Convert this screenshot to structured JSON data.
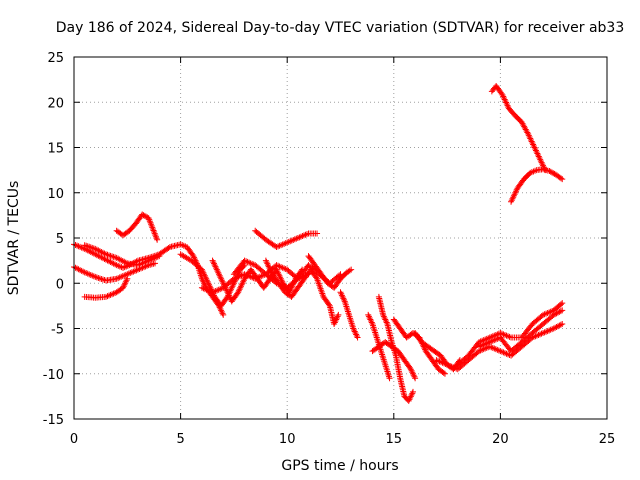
{
  "chart_data": {
    "type": "scatter",
    "title": "Day 186 of 2024, Sidereal Day-to-day VTEC variation (SDTVAR) for receiver ab33",
    "xlabel": "GPS time / hours",
    "ylabel": "SDTVAR / TECUs",
    "xlim": [
      0,
      25
    ],
    "ylim": [
      -15,
      25
    ],
    "x_ticks": [
      0,
      5,
      10,
      15,
      20,
      25
    ],
    "y_ticks": [
      -15,
      -10,
      -5,
      0,
      5,
      10,
      15,
      20,
      25
    ],
    "grid": true,
    "marker": "plus",
    "color": "#ff0000",
    "tracks": [
      {
        "name": "track-1",
        "points": [
          [
            0.0,
            4.3
          ],
          [
            0.5,
            3.8
          ],
          [
            1.0,
            3.2
          ],
          [
            1.5,
            2.6
          ],
          [
            2.0,
            2.0
          ],
          [
            2.3,
            1.7
          ],
          [
            2.6,
            2.0
          ],
          [
            3.0,
            2.5
          ],
          [
            3.5,
            2.8
          ],
          [
            4.0,
            3.2
          ],
          [
            4.5,
            4.0
          ],
          [
            5.0,
            4.3
          ],
          [
            5.3,
            4.0
          ],
          [
            5.6,
            3.0
          ],
          [
            5.8,
            2.0
          ],
          [
            6.0,
            0.5
          ],
          [
            6.2,
            -0.5
          ],
          [
            6.5,
            -1.5
          ],
          [
            6.8,
            -2.5
          ],
          [
            7.0,
            -3.5
          ]
        ]
      },
      {
        "name": "track-2",
        "points": [
          [
            0.0,
            1.8
          ],
          [
            0.5,
            1.2
          ],
          [
            1.0,
            0.7
          ],
          [
            1.5,
            0.3
          ],
          [
            2.0,
            0.5
          ],
          [
            2.5,
            1.0
          ],
          [
            3.0,
            1.5
          ],
          [
            3.5,
            2.0
          ],
          [
            3.8,
            2.2
          ]
        ]
      },
      {
        "name": "track-3",
        "points": [
          [
            0.5,
            -1.5
          ],
          [
            1.0,
            -1.6
          ],
          [
            1.5,
            -1.5
          ],
          [
            2.0,
            -1.0
          ],
          [
            2.3,
            -0.5
          ],
          [
            2.5,
            0.5
          ]
        ]
      },
      {
        "name": "track-4",
        "points": [
          [
            2.0,
            5.8
          ],
          [
            2.3,
            5.3
          ],
          [
            2.6,
            5.8
          ],
          [
            2.9,
            6.6
          ],
          [
            3.2,
            7.6
          ],
          [
            3.5,
            7.2
          ],
          [
            3.7,
            6.0
          ],
          [
            3.9,
            4.8
          ]
        ]
      },
      {
        "name": "track-5",
        "points": [
          [
            0.5,
            4.2
          ],
          [
            1.0,
            3.8
          ],
          [
            1.5,
            3.2
          ],
          [
            2.0,
            2.8
          ],
          [
            2.5,
            2.2
          ],
          [
            3.0,
            2.0
          ],
          [
            3.5,
            2.5
          ],
          [
            4.0,
            3.0
          ]
        ]
      },
      {
        "name": "track-6",
        "points": [
          [
            5.0,
            3.2
          ],
          [
            5.5,
            2.5
          ],
          [
            6.0,
            1.5
          ],
          [
            6.3,
            0.0
          ],
          [
            6.6,
            -1.5
          ],
          [
            6.9,
            -2.5
          ],
          [
            7.2,
            -1.5
          ],
          [
            7.5,
            0.0
          ],
          [
            7.8,
            1.5
          ],
          [
            8.0,
            2.0
          ]
        ]
      },
      {
        "name": "track-7",
        "points": [
          [
            6.0,
            -0.5
          ],
          [
            6.5,
            -1.0
          ],
          [
            7.0,
            -0.5
          ],
          [
            7.5,
            0.5
          ],
          [
            8.0,
            1.0
          ],
          [
            8.5,
            0.5
          ],
          [
            9.0,
            1.0
          ],
          [
            9.5,
            2.0
          ],
          [
            10.0,
            1.5
          ],
          [
            10.5,
            0.5
          ],
          [
            11.0,
            1.0
          ]
        ]
      },
      {
        "name": "track-8",
        "points": [
          [
            6.5,
            2.5
          ],
          [
            6.8,
            1.0
          ],
          [
            7.1,
            -0.5
          ],
          [
            7.4,
            -2.0
          ],
          [
            7.7,
            -1.0
          ],
          [
            8.0,
            0.5
          ],
          [
            8.3,
            1.5
          ],
          [
            8.6,
            0.5
          ],
          [
            8.9,
            -0.5
          ],
          [
            9.2,
            0.5
          ],
          [
            9.5,
            1.5
          ],
          [
            9.8,
            0.0
          ],
          [
            10.1,
            -1.0
          ],
          [
            10.4,
            0.5
          ],
          [
            10.7,
            1.5
          ]
        ]
      },
      {
        "name": "track-9",
        "points": [
          [
            7.5,
            1.0
          ],
          [
            8.0,
            2.5
          ],
          [
            8.5,
            2.0
          ],
          [
            9.0,
            1.0
          ],
          [
            9.5,
            0.0
          ],
          [
            10.0,
            -0.5
          ],
          [
            10.5,
            0.5
          ],
          [
            11.0,
            2.0
          ],
          [
            11.5,
            1.0
          ],
          [
            12.0,
            0.0
          ],
          [
            12.5,
            1.0
          ]
        ]
      },
      {
        "name": "track-10",
        "points": [
          [
            8.5,
            5.8
          ],
          [
            9.0,
            4.8
          ],
          [
            9.5,
            4.0
          ],
          [
            10.0,
            4.5
          ],
          [
            10.5,
            5.0
          ],
          [
            11.0,
            5.5
          ],
          [
            11.4,
            5.5
          ]
        ]
      },
      {
        "name": "track-11",
        "points": [
          [
            9.0,
            2.5
          ],
          [
            9.3,
            1.0
          ],
          [
            9.6,
            0.0
          ],
          [
            9.9,
            -1.0
          ],
          [
            10.2,
            -1.5
          ],
          [
            10.5,
            -0.5
          ],
          [
            10.8,
            0.5
          ],
          [
            11.1,
            1.5
          ],
          [
            11.4,
            0.5
          ],
          [
            11.7,
            -1.5
          ],
          [
            12.0,
            -2.5
          ],
          [
            12.2,
            -4.5
          ],
          [
            12.4,
            -3.5
          ]
        ]
      },
      {
        "name": "track-12",
        "points": [
          [
            11.0,
            3.0
          ],
          [
            11.3,
            2.0
          ],
          [
            11.6,
            1.0
          ],
          [
            11.9,
            0.0
          ],
          [
            12.2,
            -0.5
          ],
          [
            12.5,
            0.5
          ],
          [
            12.8,
            1.2
          ],
          [
            13.0,
            1.5
          ]
        ]
      },
      {
        "name": "track-13",
        "points": [
          [
            12.5,
            -1.0
          ],
          [
            12.7,
            -2.0
          ],
          [
            12.9,
            -3.5
          ],
          [
            13.1,
            -5.0
          ],
          [
            13.3,
            -6.0
          ]
        ]
      },
      {
        "name": "track-14",
        "points": [
          [
            13.8,
            -3.5
          ],
          [
            14.0,
            -4.5
          ],
          [
            14.2,
            -6.0
          ],
          [
            14.4,
            -7.5
          ],
          [
            14.6,
            -9.0
          ],
          [
            14.8,
            -10.5
          ]
        ]
      },
      {
        "name": "track-15",
        "points": [
          [
            14.3,
            -1.5
          ],
          [
            14.5,
            -3.5
          ],
          [
            14.7,
            -4.5
          ],
          [
            14.9,
            -6.5
          ],
          [
            15.1,
            -8.0
          ],
          [
            15.3,
            -10.5
          ],
          [
            15.5,
            -12.5
          ],
          [
            15.7,
            -13.0
          ],
          [
            15.9,
            -12.0
          ]
        ]
      },
      {
        "name": "track-16",
        "points": [
          [
            14.0,
            -7.5
          ],
          [
            14.3,
            -7.0
          ],
          [
            14.6,
            -6.5
          ],
          [
            14.9,
            -7.0
          ],
          [
            15.2,
            -7.5
          ],
          [
            15.5,
            -8.5
          ],
          [
            15.8,
            -9.5
          ],
          [
            16.0,
            -10.5
          ]
        ]
      },
      {
        "name": "track-17",
        "points": [
          [
            15.0,
            -4.0
          ],
          [
            15.3,
            -5.0
          ],
          [
            15.6,
            -6.0
          ],
          [
            15.9,
            -5.5
          ],
          [
            16.2,
            -6.0
          ],
          [
            16.5,
            -7.5
          ],
          [
            16.8,
            -8.5
          ],
          [
            17.1,
            -9.5
          ],
          [
            17.4,
            -10.0
          ]
        ]
      },
      {
        "name": "track-18",
        "points": [
          [
            16.0,
            -5.5
          ],
          [
            16.3,
            -6.5
          ],
          [
            16.6,
            -7.0
          ],
          [
            16.9,
            -7.5
          ],
          [
            17.2,
            -8.0
          ],
          [
            17.5,
            -9.0
          ],
          [
            17.8,
            -9.5
          ],
          [
            18.1,
            -8.5
          ]
        ]
      },
      {
        "name": "track-19",
        "points": [
          [
            17.0,
            -8.5
          ],
          [
            17.5,
            -9.0
          ],
          [
            18.0,
            -9.5
          ],
          [
            18.5,
            -8.5
          ],
          [
            19.0,
            -7.5
          ],
          [
            19.5,
            -7.0
          ],
          [
            20.0,
            -7.5
          ],
          [
            20.5,
            -8.0
          ],
          [
            21.0,
            -7.0
          ],
          [
            21.5,
            -6.0
          ],
          [
            22.0,
            -5.5
          ],
          [
            22.5,
            -5.0
          ],
          [
            22.9,
            -4.5
          ]
        ]
      },
      {
        "name": "track-20",
        "points": [
          [
            18.0,
            -9.0
          ],
          [
            18.5,
            -8.0
          ],
          [
            19.0,
            -6.5
          ],
          [
            19.5,
            -6.0
          ],
          [
            20.0,
            -5.5
          ],
          [
            20.5,
            -6.0
          ],
          [
            21.0,
            -6.0
          ],
          [
            21.5,
            -4.5
          ],
          [
            22.0,
            -3.5
          ],
          [
            22.5,
            -3.0
          ],
          [
            22.9,
            -2.2
          ]
        ]
      },
      {
        "name": "track-21",
        "points": [
          [
            19.0,
            -7.0
          ],
          [
            19.5,
            -6.5
          ],
          [
            20.0,
            -6.0
          ],
          [
            20.5,
            -7.5
          ],
          [
            21.0,
            -6.5
          ],
          [
            21.5,
            -5.5
          ],
          [
            22.0,
            -4.5
          ],
          [
            22.5,
            -3.5
          ],
          [
            22.9,
            -3.0
          ]
        ]
      },
      {
        "name": "track-22",
        "points": [
          [
            19.6,
            21.2
          ],
          [
            19.8,
            21.8
          ],
          [
            20.1,
            20.8
          ],
          [
            20.4,
            19.3
          ],
          [
            20.7,
            18.5
          ],
          [
            21.0,
            17.8
          ],
          [
            21.3,
            16.5
          ],
          [
            21.6,
            15.0
          ],
          [
            21.9,
            13.5
          ],
          [
            22.1,
            12.5
          ]
        ]
      },
      {
        "name": "track-23",
        "points": [
          [
            20.5,
            9.0
          ],
          [
            20.8,
            10.5
          ],
          [
            21.1,
            11.5
          ],
          [
            21.4,
            12.2
          ],
          [
            21.7,
            12.5
          ],
          [
            22.0,
            12.6
          ],
          [
            22.3,
            12.4
          ],
          [
            22.6,
            12.0
          ],
          [
            22.9,
            11.5
          ]
        ]
      }
    ]
  }
}
